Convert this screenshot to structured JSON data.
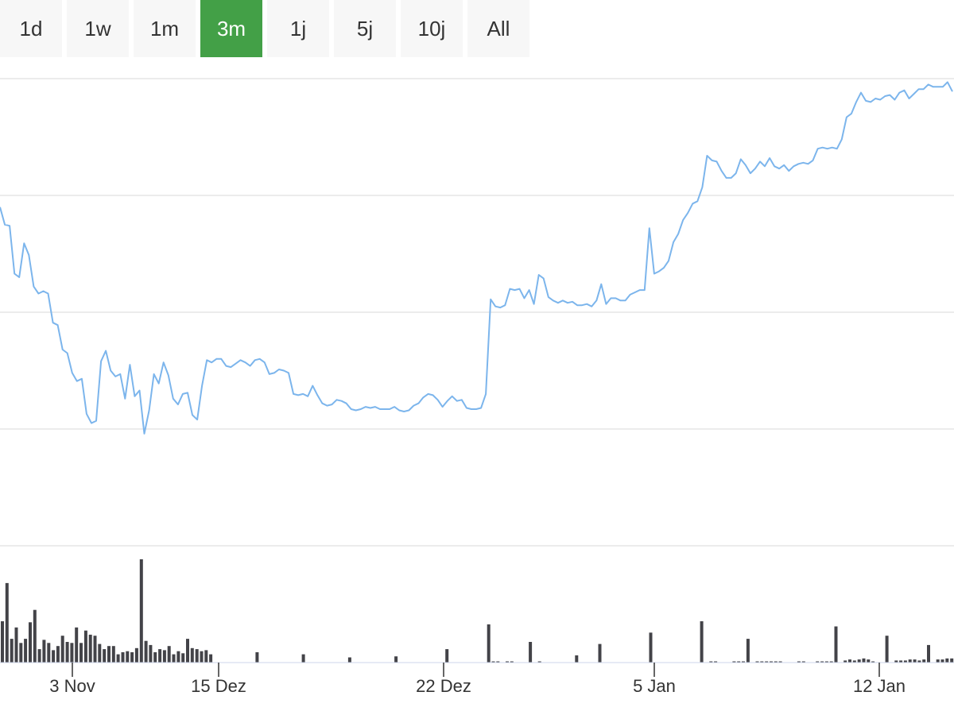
{
  "range_selector": {
    "buttons": [
      {
        "label": "1d",
        "active": false
      },
      {
        "label": "1w",
        "active": false
      },
      {
        "label": "1m",
        "active": false
      },
      {
        "label": "3m",
        "active": true
      },
      {
        "label": "1j",
        "active": false
      },
      {
        "label": "5j",
        "active": false
      },
      {
        "label": "10j",
        "active": false
      },
      {
        "label": "All",
        "active": false
      }
    ],
    "active_color": "#43a047"
  },
  "chart_data": [
    {
      "type": "line",
      "color": "#7cb5ec",
      "grid": true,
      "y_tick_labels_visible": false,
      "x_ticks": [
        "3 Nov",
        "15 Dez",
        "22 Dez",
        "5 Jan",
        "12 Jan"
      ],
      "y_range": [
        0,
        4
      ],
      "values": [
        2.9,
        2.75,
        2.74,
        2.33,
        2.3,
        2.59,
        2.49,
        2.22,
        2.16,
        2.18,
        2.16,
        1.91,
        1.89,
        1.68,
        1.65,
        1.48,
        1.41,
        1.43,
        1.13,
        1.05,
        1.07,
        1.58,
        1.67,
        1.5,
        1.45,
        1.47,
        1.26,
        1.55,
        1.28,
        1.33,
        0.96,
        1.16,
        1.47,
        1.39,
        1.57,
        1.46,
        1.26,
        1.21,
        1.3,
        1.31,
        1.12,
        1.08,
        1.37,
        1.59,
        1.57,
        1.6,
        1.6,
        1.54,
        1.53,
        1.56,
        1.59,
        1.57,
        1.54,
        1.59,
        1.6,
        1.57,
        1.47,
        1.48,
        1.51,
        1.5,
        1.48,
        1.3,
        1.29,
        1.3,
        1.28,
        1.37,
        1.29,
        1.22,
        1.2,
        1.21,
        1.25,
        1.24,
        1.22,
        1.17,
        1.16,
        1.17,
        1.19,
        1.18,
        1.19,
        1.17,
        1.17,
        1.17,
        1.19,
        1.16,
        1.15,
        1.16,
        1.2,
        1.22,
        1.27,
        1.3,
        1.29,
        1.25,
        1.19,
        1.24,
        1.28,
        1.24,
        1.25,
        1.18,
        1.17,
        1.17,
        1.18,
        1.3,
        2.11,
        2.05,
        2.04,
        2.06,
        2.2,
        2.19,
        2.2,
        2.12,
        2.19,
        2.07,
        2.32,
        2.29,
        2.13,
        2.1,
        2.08,
        2.1,
        2.08,
        2.09,
        2.06,
        2.06,
        2.07,
        2.05,
        2.1,
        2.24,
        2.07,
        2.12,
        2.12,
        2.1,
        2.1,
        2.15,
        2.17,
        2.19,
        2.19,
        2.72,
        2.33,
        2.35,
        2.38,
        2.44,
        2.6,
        2.67,
        2.79,
        2.85,
        2.93,
        2.95,
        3.07,
        3.34,
        3.3,
        3.29,
        3.21,
        3.15,
        3.15,
        3.19,
        3.31,
        3.26,
        3.19,
        3.23,
        3.29,
        3.25,
        3.32,
        3.25,
        3.23,
        3.26,
        3.21,
        3.25,
        3.27,
        3.28,
        3.27,
        3.3,
        3.4,
        3.41,
        3.4,
        3.41,
        3.4,
        3.48,
        3.67,
        3.7,
        3.8,
        3.88,
        3.81,
        3.8,
        3.83,
        3.82,
        3.85,
        3.86,
        3.82,
        3.88,
        3.9,
        3.83,
        3.87,
        3.91,
        3.91,
        3.95,
        3.93,
        3.93,
        3.93,
        3.97,
        3.89
      ]
    },
    {
      "type": "bar",
      "color": "#434348",
      "y_range": [
        0,
        1
      ],
      "values": [
        0.4,
        0.77,
        0.23,
        0.34,
        0.19,
        0.23,
        0.39,
        0.51,
        0.13,
        0.22,
        0.19,
        0.12,
        0.16,
        0.26,
        0.2,
        0.19,
        0.34,
        0.19,
        0.31,
        0.27,
        0.26,
        0.18,
        0.13,
        0.16,
        0.16,
        0.08,
        0.1,
        0.11,
        0.1,
        0.14,
        1.0,
        0.21,
        0.17,
        0.1,
        0.13,
        0.12,
        0.16,
        0.08,
        0.11,
        0.09,
        0.23,
        0.14,
        0.13,
        0.11,
        0.12,
        0.08,
        null,
        null,
        null,
        null,
        null,
        null,
        null,
        null,
        null,
        0.1,
        null,
        null,
        null,
        null,
        null,
        null,
        null,
        null,
        null,
        0.08,
        null,
        null,
        null,
        null,
        null,
        null,
        null,
        null,
        null,
        0.05,
        null,
        null,
        null,
        null,
        null,
        null,
        null,
        null,
        null,
        0.06,
        null,
        null,
        null,
        null,
        null,
        null,
        null,
        null,
        null,
        null,
        0.13,
        null,
        null,
        null,
        null,
        null,
        null,
        null,
        null,
        0.37,
        0.01,
        0.01,
        null,
        0.01,
        0.01,
        null,
        null,
        null,
        0.2,
        null,
        0.01,
        null,
        null,
        null,
        null,
        null,
        null,
        null,
        0.07,
        null,
        null,
        null,
        null,
        0.18,
        null,
        null,
        null,
        null,
        null,
        null,
        null,
        null,
        null,
        null,
        0.29,
        null,
        null,
        null,
        null,
        null,
        null,
        null,
        null,
        null,
        null,
        0.4,
        null,
        0.01,
        0.01,
        null,
        null,
        null,
        0.01,
        0.01,
        0.01,
        0.23,
        null,
        0.01,
        0.01,
        0.01,
        0.01,
        0.01,
        0.01,
        null,
        null,
        null,
        0.01,
        0.01,
        null,
        null,
        0.01,
        0.01,
        0.01,
        0.01,
        0.35,
        null,
        0.02,
        0.03,
        0.02,
        0.03,
        0.04,
        0.03,
        0.01,
        null,
        null,
        0.26,
        null,
        0.02,
        0.02,
        0.02,
        0.03,
        0.03,
        0.02,
        0.03,
        0.17,
        null,
        0.03,
        0.03,
        0.04,
        0.04
      ]
    }
  ]
}
